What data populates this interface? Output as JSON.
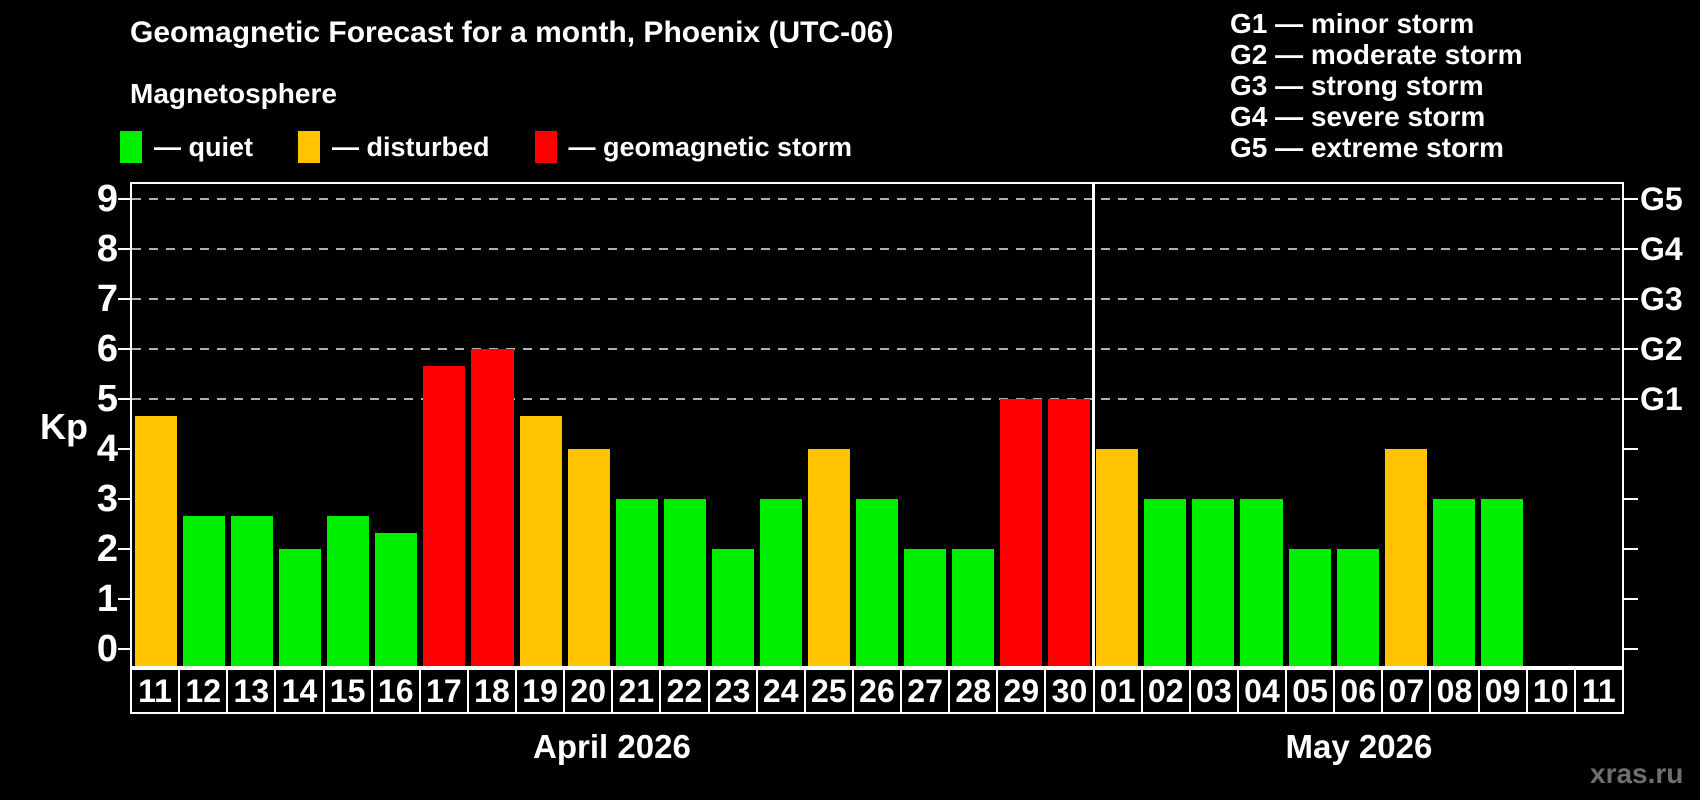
{
  "title": "Geomagnetic Forecast for a month, Phoenix (UTC-06)",
  "subtitle": "Magnetosphere",
  "legend": [
    {
      "name": "quiet",
      "label": "— quiet",
      "color": "#00ee00"
    },
    {
      "name": "disturbed",
      "label": "— disturbed",
      "color": "#ffc300"
    },
    {
      "name": "storm",
      "label": "— geomagnetic storm",
      "color": "#ff0000"
    }
  ],
  "g_legend": [
    {
      "text": "G1 — minor storm"
    },
    {
      "text": "G2 — moderate storm"
    },
    {
      "text": "G3 — strong storm"
    },
    {
      "text": "G4 — severe storm"
    },
    {
      "text": "G5 — extreme storm"
    }
  ],
  "watermark": "xras.ru",
  "chart_data": {
    "type": "bar",
    "title": "Geomagnetic Forecast for a month, Phoenix (UTC-06)",
    "ylabel": "Kp",
    "ylim": [
      0,
      9.4
    ],
    "yticks": [
      0,
      1,
      2,
      3,
      4,
      5,
      6,
      7,
      8,
      9
    ],
    "gridlines_at": [
      5,
      6,
      7,
      8,
      9
    ],
    "grid": "dashed, only at storm levels G1-G5",
    "legend_position": "top",
    "right_axis_labels": [
      {
        "label": "G1",
        "kp": 5
      },
      {
        "label": "G2",
        "kp": 6
      },
      {
        "label": "G3",
        "kp": 7
      },
      {
        "label": "G4",
        "kp": 8
      },
      {
        "label": "G5",
        "kp": 9
      }
    ],
    "series_colors": {
      "quiet": "#00ee00",
      "disturbed": "#ffc300",
      "storm": "#ff0000"
    },
    "months": [
      {
        "label": "April 2026",
        "days": [
          "11",
          "12",
          "13",
          "14",
          "15",
          "16",
          "17",
          "18",
          "19",
          "20",
          "21",
          "22",
          "23",
          "24",
          "25",
          "26",
          "27",
          "28",
          "29",
          "30"
        ],
        "values": [
          4.67,
          2.67,
          2.67,
          2.0,
          2.67,
          2.33,
          5.67,
          6.0,
          4.67,
          4.0,
          3.0,
          3.0,
          2.0,
          3.0,
          4.0,
          3.0,
          2.0,
          2.0,
          5.0,
          5.0
        ],
        "states": [
          "disturbed",
          "quiet",
          "quiet",
          "quiet",
          "quiet",
          "quiet",
          "storm",
          "storm",
          "disturbed",
          "disturbed",
          "quiet",
          "quiet",
          "quiet",
          "quiet",
          "disturbed",
          "quiet",
          "quiet",
          "quiet",
          "storm",
          "storm"
        ]
      },
      {
        "label": "May 2026",
        "days": [
          "01",
          "02",
          "03",
          "04",
          "05",
          "06",
          "07",
          "08",
          "09",
          "10",
          "11"
        ],
        "values": [
          4.0,
          3.0,
          3.0,
          3.0,
          2.0,
          2.0,
          4.0,
          3.0,
          3.0,
          null,
          null
        ],
        "states": [
          "disturbed",
          "quiet",
          "quiet",
          "quiet",
          "quiet",
          "quiet",
          "disturbed",
          "quiet",
          "quiet",
          null,
          null
        ]
      }
    ]
  }
}
